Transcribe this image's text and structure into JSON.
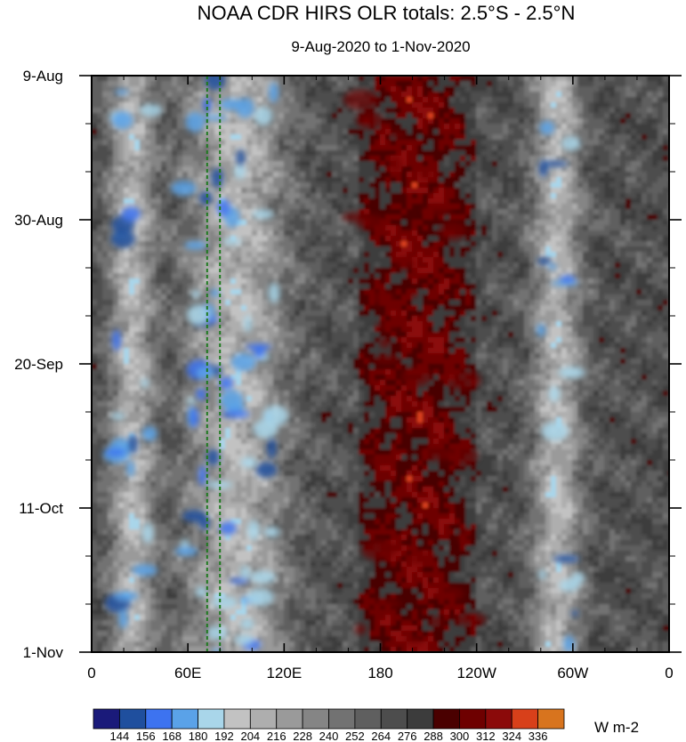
{
  "chart_data": {
    "type": "heatmap",
    "title": "NOAA CDR HIRS OLR totals: 2.5°S - 2.5°N",
    "subtitle": "9-Aug-2020 to 1-Nov-2020",
    "xlabel": "",
    "ylabel": "",
    "x_ticks": [
      "0",
      "60E",
      "120E",
      "180",
      "120W",
      "60W",
      "0"
    ],
    "x_tick_lon": [
      0,
      60,
      120,
      180,
      240,
      300,
      360
    ],
    "xlim": [
      0,
      360
    ],
    "y_ticks": [
      "9-Aug",
      "30-Aug",
      "20-Sep",
      "11-Oct",
      "1-Nov"
    ],
    "y_tick_day": [
      0,
      21,
      42,
      63,
      84
    ],
    "ylim": [
      0,
      84
    ],
    "units": "W m-2",
    "colorbar": {
      "levels": [
        144,
        156,
        168,
        180,
        192,
        204,
        216,
        228,
        240,
        252,
        264,
        276,
        288,
        300,
        312,
        324,
        336
      ],
      "colors": [
        "#1a1a7a",
        "#1f4f9e",
        "#3d73f0",
        "#5aa2e8",
        "#a9d6ea",
        "#c2c2c2",
        "#aeaeae",
        "#9a9a9a",
        "#858585",
        "#727272",
        "#5f5f5f",
        "#4d4d4d",
        "#3c3c3c",
        "#4a0000",
        "#6e0000",
        "#8b0a0a",
        "#d8401a",
        "#d8741e"
      ]
    },
    "reference_lines_lon": [
      72,
      80
    ],
    "reference_line_color": "#1e7a1e",
    "convective_bands": [
      {
        "lon_center": 25,
        "lon_width": 20
      },
      {
        "lon_center": 90,
        "lon_width": 45
      },
      {
        "lon_center": 290,
        "lon_width": 22
      }
    ],
    "warm_region_lon": [
      165,
      240
    ],
    "grid": false
  }
}
